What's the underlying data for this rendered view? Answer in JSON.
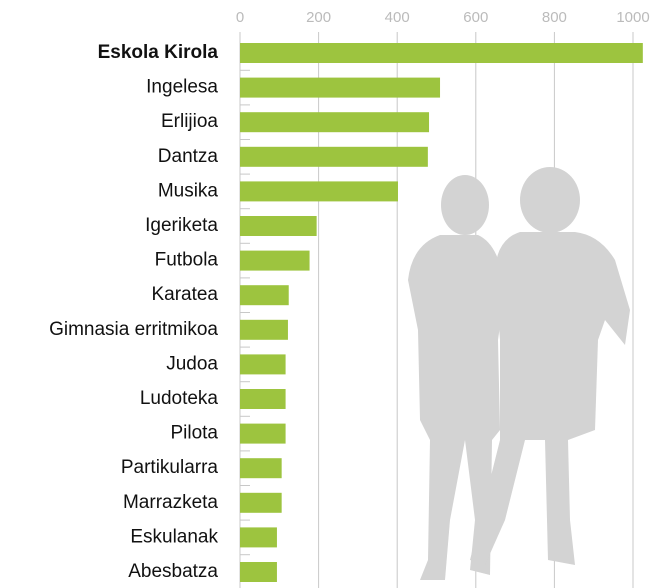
{
  "chart_data": {
    "type": "bar",
    "orientation": "horizontal",
    "categories": [
      "Eskola Kirola",
      "Ingelesa",
      "Erlijioa",
      "Dantza",
      "Musika",
      "Igeriketa",
      "Futbola",
      "Karatea",
      "Gimnasia erritmikoa",
      "Judoa",
      "Ludoteka",
      "Pilota",
      "Partikularra",
      "Marrazketa",
      "Eskulanak",
      "Abesbatza"
    ],
    "values": [
      1025,
      509,
      481,
      478,
      402,
      195,
      177,
      124,
      122,
      116,
      116,
      116,
      106,
      106,
      94,
      94
    ],
    "color": "#9dc43f",
    "xlim": [
      0,
      1000
    ],
    "xticks": [
      0,
      200,
      400,
      600,
      800,
      1000
    ],
    "grid": true
  }
}
